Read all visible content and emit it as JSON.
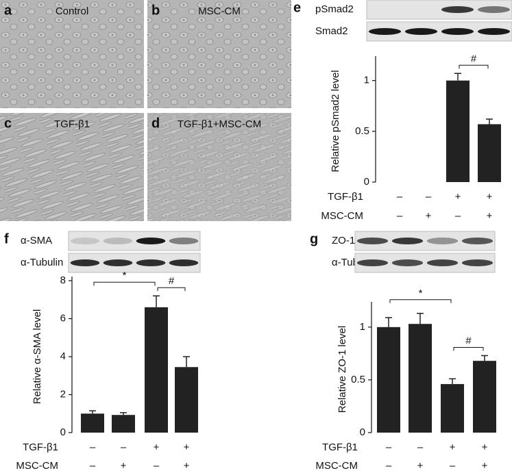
{
  "micrographs": [
    {
      "letter": "a",
      "label": "Control"
    },
    {
      "letter": "b",
      "label": "MSC-CM"
    },
    {
      "letter": "c",
      "label": "TGF-β1"
    },
    {
      "letter": "d",
      "label": "TGF-β1+MSC-CM"
    }
  ],
  "chart_data": [
    {
      "type": "bar",
      "panel": "e",
      "blot_labels": [
        "pSmad2",
        "Smad2"
      ],
      "y_label": "Relative pSmad2 level",
      "color": "#222222",
      "values": [
        null,
        null,
        1.0,
        0.57
      ],
      "errors": [
        null,
        null,
        0.07,
        0.05
      ],
      "ylim": [
        0,
        1.2
      ],
      "yticks": [
        0,
        0.5,
        1
      ],
      "conditions": [
        {
          "name": "TGF-β1",
          "signs": [
            "–",
            "–",
            "+",
            "+"
          ]
        },
        {
          "name": "MSC-CM",
          "signs": [
            "–",
            "+",
            "–",
            "+"
          ]
        }
      ],
      "annotations": [
        {
          "text": "#",
          "from": 2,
          "to": 3
        }
      ]
    },
    {
      "type": "bar",
      "panel": "f",
      "blot_labels": [
        "α-SMA",
        "α-Tubulin"
      ],
      "y_label": "Relative α-SMA level",
      "color": "#222222",
      "values": [
        1.0,
        0.93,
        6.6,
        3.45
      ],
      "errors": [
        0.15,
        0.12,
        0.6,
        0.55
      ],
      "ylim": [
        0,
        8
      ],
      "yticks": [
        0,
        2,
        4,
        6,
        8
      ],
      "conditions": [
        {
          "name": "TGF-β1",
          "signs": [
            "–",
            "–",
            "+",
            "+"
          ]
        },
        {
          "name": "MSC-CM",
          "signs": [
            "–",
            "+",
            "–",
            "+"
          ]
        }
      ],
      "annotations": [
        {
          "text": "*",
          "from": 0,
          "to": 2
        },
        {
          "text": "#",
          "from": 2,
          "to": 3
        }
      ]
    },
    {
      "type": "bar",
      "panel": "g",
      "blot_labels": [
        "ZO-1",
        "α-Tubulin"
      ],
      "y_label": "Relative ZO-1 level",
      "color": "#222222",
      "values": [
        1.0,
        1.03,
        0.46,
        0.68
      ],
      "errors": [
        0.09,
        0.1,
        0.05,
        0.05
      ],
      "ylim": [
        0,
        1.2
      ],
      "yticks": [
        0,
        0.5,
        1
      ],
      "conditions": [
        {
          "name": "TGF-β1",
          "signs": [
            "–",
            "–",
            "+",
            "+"
          ]
        },
        {
          "name": "MSC-CM",
          "signs": [
            "–",
            "+",
            "–",
            "+"
          ]
        }
      ],
      "annotations": [
        {
          "text": "*",
          "from": 0,
          "to": 2
        },
        {
          "text": "#",
          "from": 2,
          "to": 3
        }
      ]
    }
  ]
}
